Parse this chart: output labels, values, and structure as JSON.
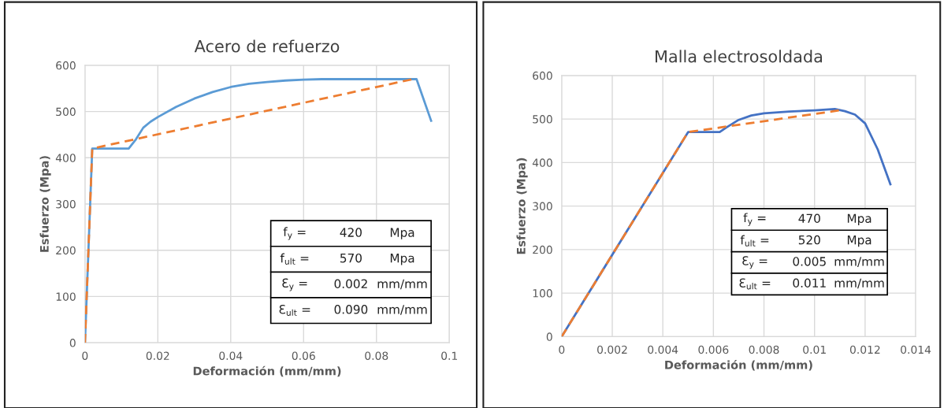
{
  "chart_data": [
    {
      "type": "line",
      "title": "Acero de refuerzo",
      "xlabel": "Deformación (mm/mm)",
      "ylabel": "Esfuerzo (Mpa)",
      "xlim": [
        0,
        0.1
      ],
      "xticks": [
        0,
        0.02,
        0.04,
        0.06,
        0.08,
        0.1
      ],
      "ylim": [
        0,
        600
      ],
      "yticks": [
        0,
        100,
        200,
        300,
        400,
        500,
        600
      ],
      "grid": true,
      "legend": false,
      "series": [
        {
          "color": "#5b9bd5",
          "line_style": "solid",
          "x": [
            0,
            0.002,
            0.012,
            0.014,
            0.016,
            0.018,
            0.02,
            0.025,
            0.03,
            0.035,
            0.04,
            0.045,
            0.05,
            0.055,
            0.06,
            0.065,
            0.09,
            0.091,
            0.095
          ],
          "values": [
            0,
            420,
            420,
            440,
            465,
            478,
            488,
            510,
            528,
            542,
            553,
            560,
            564,
            567,
            569,
            570,
            570,
            570,
            480
          ]
        },
        {
          "color": "#ed7d31",
          "line_style": "dashed",
          "x": [
            0,
            0.002,
            0.09
          ],
          "values": [
            0,
            420,
            570
          ]
        }
      ],
      "annotations": [
        "f$_{y}$ =",
        "420",
        "Mpa",
        "f$_{ult}$ =",
        "570",
        "Mpa",
        "Ɛ$_{y}$ =",
        "0.002",
        "mm/mm",
        "Ɛ$_{ult}$ =",
        "0.090",
        "mm/mm"
      ]
    },
    {
      "type": "line",
      "title": "Malla electrosoldada",
      "xlabel": "Deformación (mm/mm)",
      "ylabel": "Esfuerzo (Mpa)",
      "xlim": [
        0,
        0.014
      ],
      "xticks": [
        0,
        0.002,
        0.004,
        0.006,
        0.008,
        0.01,
        0.012,
        0.014
      ],
      "ylim": [
        0,
        600
      ],
      "yticks": [
        0,
        100,
        200,
        300,
        400,
        500,
        600
      ],
      "grid": true,
      "legend": false,
      "series": [
        {
          "color": "#4472c4",
          "line_style": "solid",
          "x": [
            0,
            0.005,
            0.00625,
            0.0065,
            0.007,
            0.0075,
            0.008,
            0.009,
            0.01,
            0.0108,
            0.0112,
            0.0116,
            0.012,
            0.0125,
            0.013
          ],
          "values": [
            0,
            470,
            470,
            480,
            498,
            508,
            513,
            517,
            520,
            523,
            518,
            510,
            490,
            430,
            350
          ]
        },
        {
          "color": "#ed7d31",
          "line_style": "dashed",
          "x": [
            0,
            0.005,
            0.011
          ],
          "values": [
            0,
            470,
            520
          ]
        }
      ],
      "annotations": [
        "f$_{y}$ =",
        "470",
        "Mpa",
        "f$_{ult}$ =",
        "520",
        "Mpa",
        "Ɛ$_{y}$ =",
        "0.005",
        "mm/mm",
        "Ɛ$_{ult}$ =",
        "0.011",
        "mm/mm"
      ]
    }
  ]
}
